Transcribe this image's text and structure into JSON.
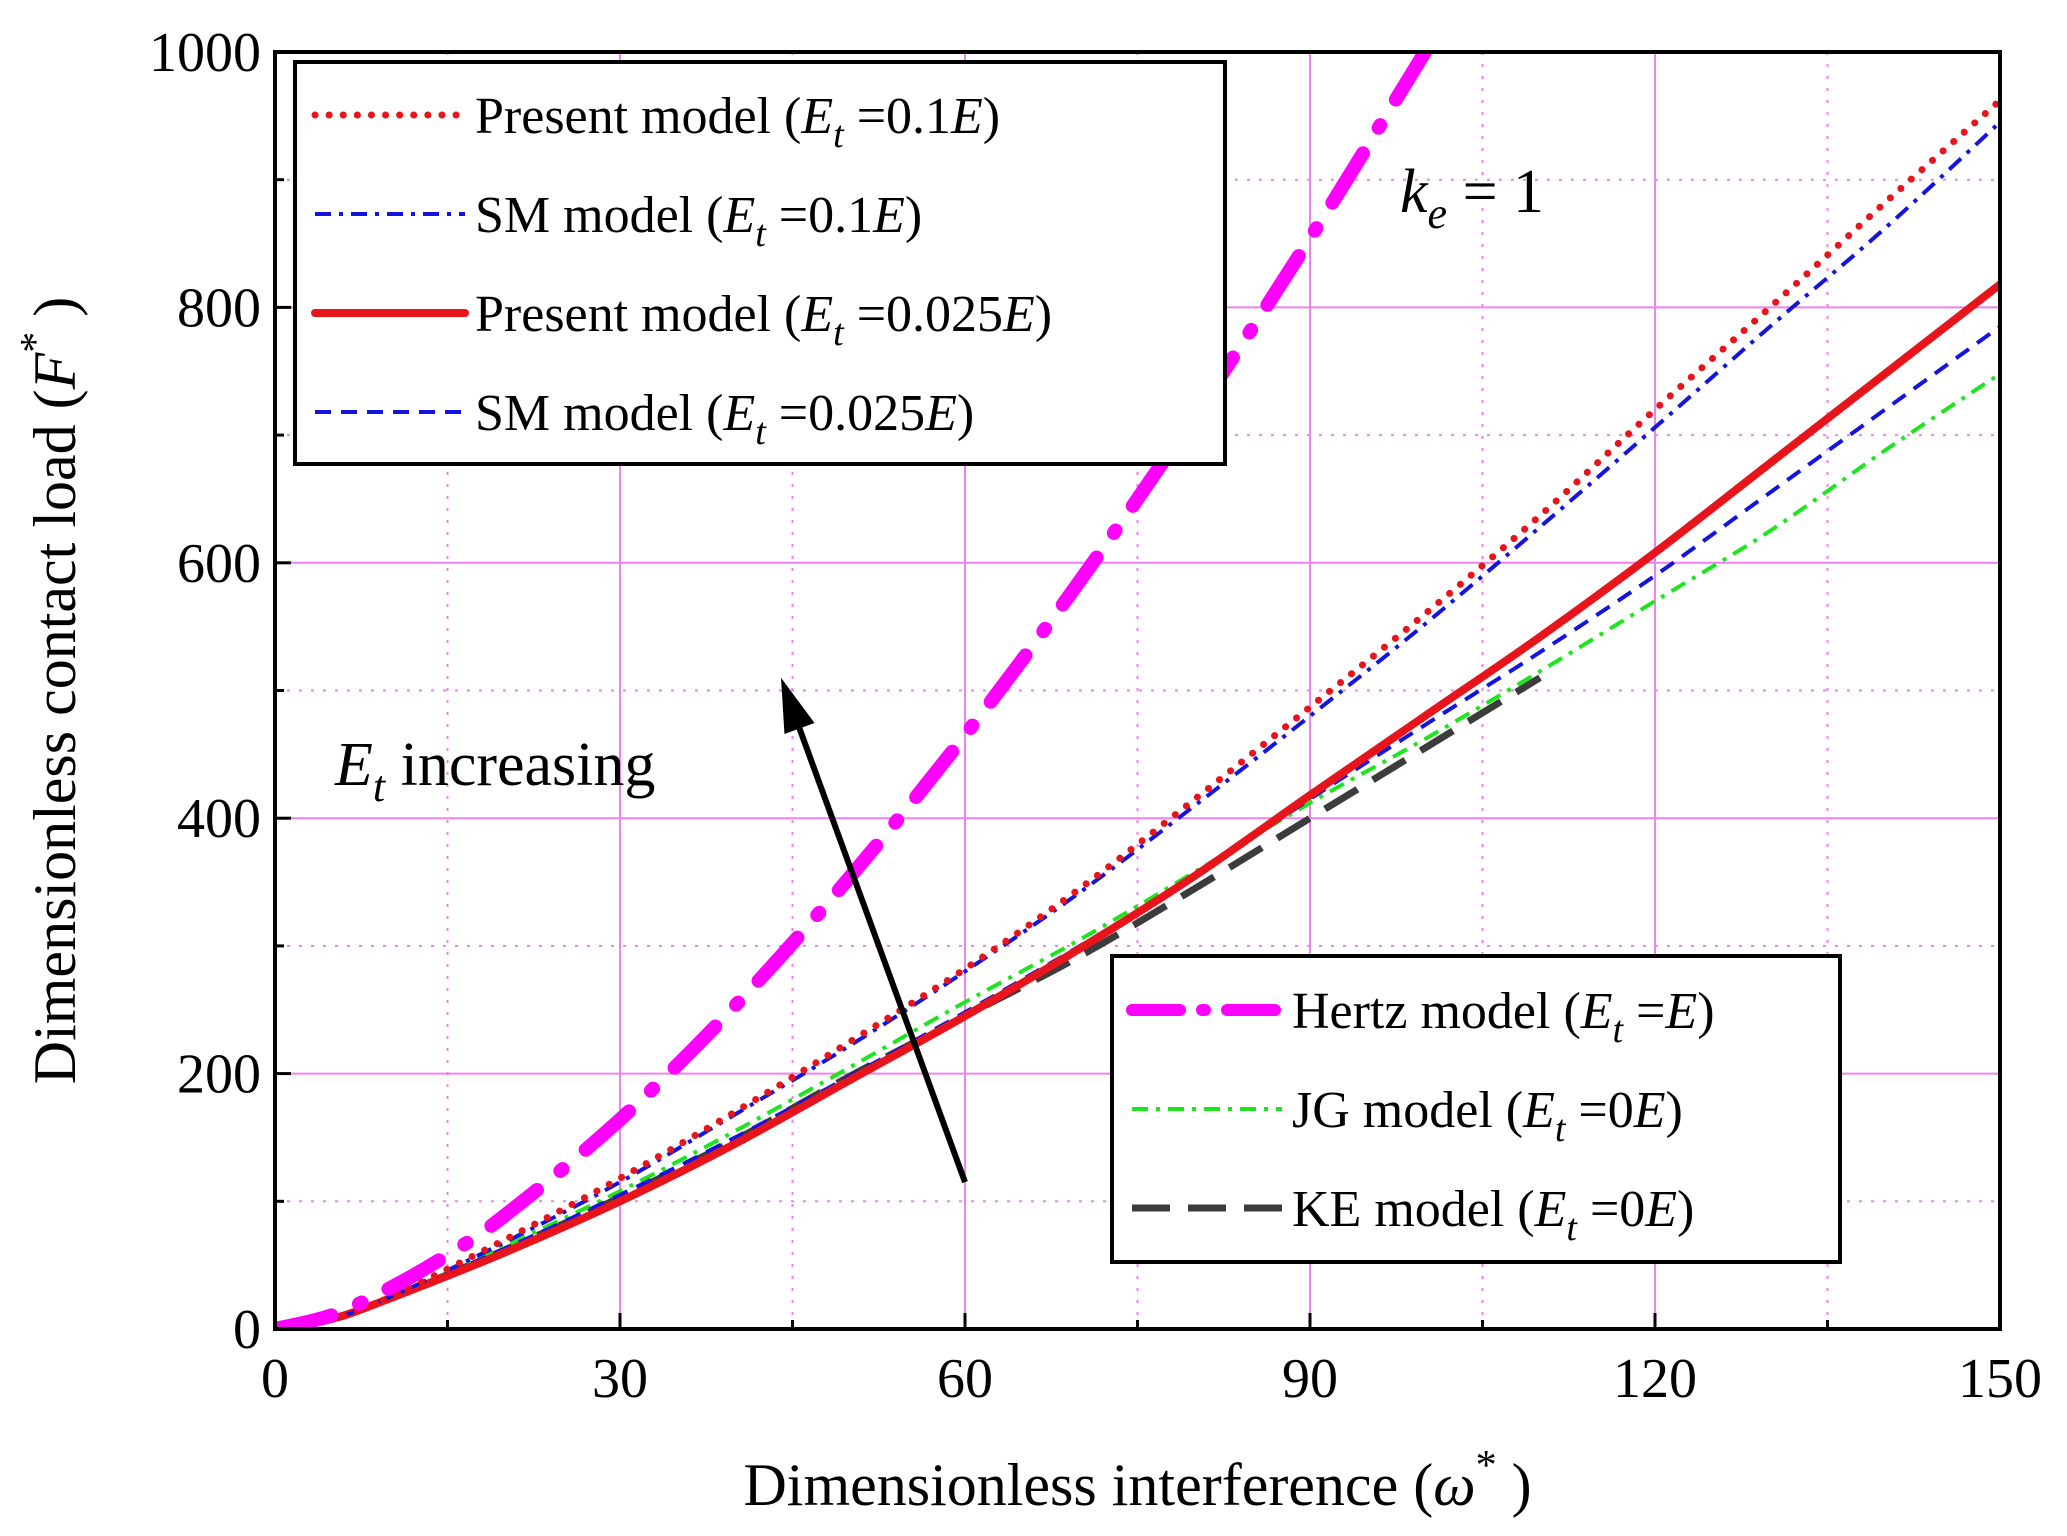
{
  "chart_data": {
    "type": "line",
    "xlabel": "Dimensionless interference (ω*)",
    "ylabel": "Dimensionless contact load (F*)",
    "xlabel_parts": {
      "prefix": "Dimensionless interference (",
      "symbol": "ω",
      "sup": "*",
      "suffix": " )"
    },
    "ylabel_parts": {
      "prefix": "Dimensionless contact load (",
      "symbol": "F",
      "sup": "*",
      "suffix": " )"
    },
    "xlim": [
      0,
      150
    ],
    "ylim": [
      0,
      1000
    ],
    "xticks": [
      0,
      30,
      60,
      90,
      120,
      150
    ],
    "yticks": [
      0,
      200,
      400,
      600,
      800,
      1000
    ],
    "xtick_labels": [
      "0",
      "30",
      "60",
      "90",
      "120",
      "150"
    ],
    "ytick_labels": [
      "0",
      "200",
      "400",
      "600",
      "800",
      "1000"
    ],
    "grid": true,
    "legend_positions": [
      "top-left",
      "bottom-right"
    ],
    "series": [
      {
        "id": "present_01",
        "name": "Present model (Et =0.1E)",
        "legend_text": [
          "Present model (",
          "E",
          "t",
          " =0.1",
          "E",
          ")"
        ],
        "color": "#e8141b",
        "style": "dotted",
        "legend_group": 0,
        "x": [
          0,
          5,
          10,
          20,
          30,
          40,
          50,
          60,
          70,
          80,
          90,
          100,
          110,
          120,
          130,
          140,
          150
        ],
        "y": [
          0,
          8,
          25,
          70,
          118,
          170,
          225,
          282,
          345,
          415,
          487,
          560,
          637,
          720,
          800,
          882,
          962
        ]
      },
      {
        "id": "sm_01",
        "name": "SM model (Et =0.1E)",
        "legend_text": [
          "SM model (",
          "E",
          "t",
          " =0.1",
          "E",
          ")"
        ],
        "color": "#1414e0",
        "style": "dashdot",
        "legend_group": 0,
        "x": [
          0,
          5,
          10,
          20,
          30,
          40,
          50,
          60,
          70,
          80,
          90,
          100,
          110,
          120,
          130,
          140,
          150
        ],
        "y": [
          0,
          8,
          25,
          68,
          115,
          168,
          222,
          280,
          342,
          410,
          480,
          552,
          628,
          706,
          785,
          862,
          945
        ]
      },
      {
        "id": "present_0025",
        "name": "Present model (Et =0.025E)",
        "legend_text": [
          "Present model (",
          "E",
          "t",
          " =0.025",
          "E",
          ")"
        ],
        "color": "#e8141b",
        "style": "solid",
        "legend_group": 0,
        "x": [
          0,
          5,
          10,
          20,
          30,
          40,
          50,
          60,
          70,
          80,
          90,
          100,
          110,
          120,
          130,
          140,
          150
        ],
        "y": [
          0,
          8,
          24,
          60,
          100,
          145,
          195,
          245,
          298,
          355,
          418,
          480,
          542,
          608,
          678,
          748,
          818
        ]
      },
      {
        "id": "sm_0025",
        "name": "SM model (Et =0.025E)",
        "legend_text": [
          "SM model (",
          "E",
          "t",
          " =0.025",
          "E",
          ")"
        ],
        "color": "#1414e0",
        "style": "dashed",
        "legend_group": 0,
        "x": [
          0,
          5,
          10,
          20,
          30,
          40,
          50,
          60,
          70,
          80,
          90,
          100,
          110,
          120,
          130,
          140,
          150
        ],
        "y": [
          0,
          8,
          25,
          63,
          105,
          150,
          198,
          248,
          300,
          355,
          415,
          473,
          530,
          590,
          655,
          720,
          785
        ]
      },
      {
        "id": "hertz",
        "name": "Hertz model (Et =E)",
        "legend_text": [
          "Hertz model (",
          "E",
          "t",
          " =",
          "E",
          ")"
        ],
        "color": "#ff00ff",
        "style": "dashdot-thick",
        "legend_group": 1,
        "x": [
          0,
          5,
          10,
          15,
          20,
          30,
          40,
          50,
          60,
          70,
          80,
          90,
          100
        ],
        "y": [
          0,
          11,
          32,
          58,
          89,
          164,
          253,
          354,
          465,
          586,
          716,
          854,
          1000
        ]
      },
      {
        "id": "jg",
        "name": "JG model (Et =0E)",
        "legend_text": [
          "JG model (",
          "E",
          "t",
          " =0",
          "E",
          ")"
        ],
        "color": "#1ee61e",
        "style": "dashdot",
        "legend_group": 1,
        "x": [
          0,
          5,
          10,
          20,
          30,
          40,
          50,
          60,
          70,
          80,
          90,
          100,
          110,
          120,
          130,
          140,
          150
        ],
        "y": [
          0,
          8,
          25,
          65,
          108,
          155,
          205,
          256,
          305,
          358,
          412,
          462,
          515,
          570,
          625,
          688,
          748
        ]
      },
      {
        "id": "ke",
        "name": "KE model (Et =0E)",
        "legend_text": [
          "KE model (",
          "E",
          "t",
          " =0",
          "E",
          ")"
        ],
        "color": "#3c3c3c",
        "style": "longdash",
        "legend_group": 1,
        "x": [
          0,
          5,
          10,
          20,
          30,
          40,
          50,
          60,
          70,
          80,
          90,
          100,
          110
        ],
        "y": [
          0,
          8,
          24,
          62,
          103,
          148,
          198,
          245,
          292,
          345,
          400,
          455,
          510
        ]
      }
    ],
    "annotations": {
      "ke": {
        "prefix": "k",
        "sub": "e",
        "suffix": " = 1"
      },
      "et": {
        "prefix": "E",
        "sub": "t",
        "suffix": " increasing"
      },
      "arrow": {
        "from": [
          60,
          115
        ],
        "to": [
          44,
          510
        ]
      }
    }
  }
}
